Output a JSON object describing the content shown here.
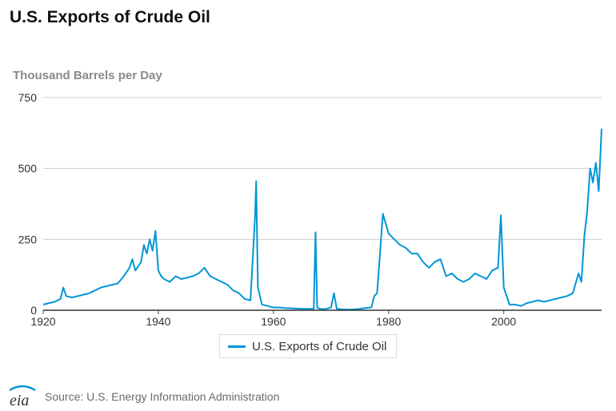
{
  "chart_data": {
    "type": "line",
    "title": "U.S. Exports of Crude Oil",
    "ylabel": "Thousand Barrels per Day",
    "xlabel": "",
    "xlim": [
      1920,
      2017
    ],
    "ylim": [
      0,
      750
    ],
    "xticks": [
      1920,
      1940,
      1960,
      1980,
      2000
    ],
    "yticks": [
      0,
      250,
      500,
      750
    ],
    "grid": true,
    "legend_position": "bottom-center",
    "series": [
      {
        "name": "U.S. Exports of Crude Oil",
        "color": "#0096d6",
        "x": [
          1920,
          1921,
          1922,
          1923,
          1923.5,
          1924,
          1925,
          1926,
          1927,
          1928,
          1929,
          1930,
          1931,
          1932,
          1933,
          1934,
          1935,
          1935.5,
          1936,
          1937,
          1937.5,
          1938,
          1938.5,
          1939,
          1939.5,
          1940,
          1940.5,
          1941,
          1942,
          1943,
          1944,
          1945,
          1946,
          1947,
          1948,
          1949,
          1950,
          1951,
          1952,
          1953,
          1954,
          1955,
          1956,
          1956.8,
          1957,
          1957.3,
          1958,
          1959,
          1960,
          1961,
          1962,
          1963,
          1964,
          1965,
          1966,
          1967,
          1967.3,
          1967.6,
          1968,
          1969,
          1970,
          1970.5,
          1971,
          1972,
          1973,
          1974,
          1975,
          1976,
          1977,
          1977.5,
          1978,
          1978.5,
          1979,
          1980,
          1981,
          1982,
          1983,
          1984,
          1985,
          1986,
          1987,
          1988,
          1989,
          1990,
          1991,
          1992,
          1993,
          1994,
          1995,
          1996,
          1997,
          1998,
          1999,
          1999.5,
          2000,
          2001,
          2002,
          2003,
          2004,
          2005,
          2006,
          2007,
          2008,
          2009,
          2010,
          2011,
          2012,
          2013,
          2013.5,
          2014,
          2014.5,
          2015,
          2015.5,
          2016,
          2016.5,
          2017
        ],
        "values": [
          20,
          25,
          30,
          40,
          80,
          50,
          45,
          50,
          55,
          60,
          70,
          80,
          85,
          90,
          95,
          120,
          150,
          180,
          140,
          170,
          230,
          200,
          250,
          210,
          280,
          140,
          120,
          110,
          100,
          120,
          110,
          115,
          120,
          130,
          150,
          120,
          110,
          100,
          90,
          70,
          60,
          40,
          35,
          330,
          455,
          80,
          20,
          15,
          10,
          10,
          8,
          7,
          6,
          5,
          5,
          5,
          275,
          10,
          5,
          4,
          10,
          60,
          5,
          3,
          2,
          3,
          5,
          8,
          10,
          50,
          60,
          200,
          340,
          270,
          250,
          230,
          220,
          200,
          200,
          170,
          150,
          170,
          180,
          120,
          130,
          110,
          100,
          110,
          130,
          120,
          110,
          140,
          150,
          335,
          80,
          20,
          20,
          15,
          25,
          30,
          35,
          30,
          35,
          40,
          45,
          50,
          60,
          130,
          100,
          260,
          350,
          500,
          450,
          520,
          420,
          640
        ]
      }
    ]
  },
  "legend": {
    "label": "U.S. Exports of Crude Oil"
  },
  "source": {
    "text": "Source: U.S. Energy Information Administration"
  },
  "logo": {
    "text": "eia"
  }
}
